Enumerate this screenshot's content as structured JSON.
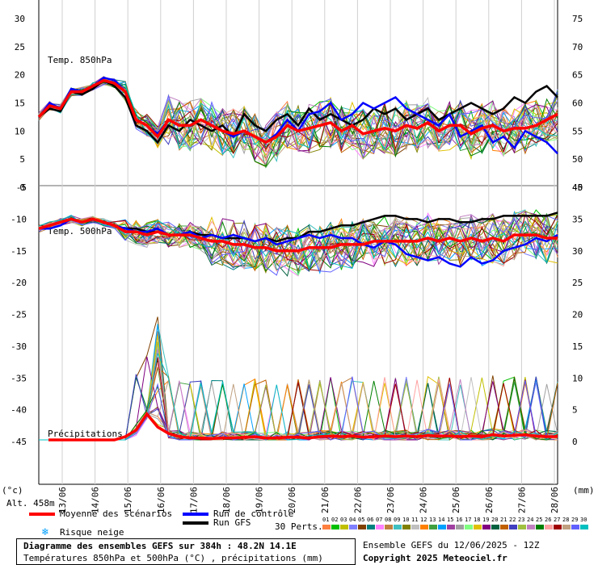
{
  "chart_data": {
    "type": "line",
    "panels": [
      {
        "title": "Temp. 850hPa",
        "ylim": [
          0,
          30
        ],
        "left_ticks": [
          "0",
          "5",
          "10",
          "15",
          "20",
          "25",
          "30"
        ],
        "right_ticks": [
          "45",
          "50",
          "55",
          "60",
          "65",
          "70",
          "75"
        ]
      },
      {
        "title": "Temp. 500hPa",
        "ylim": [
          -45,
          -5
        ],
        "left_ticks": [
          "-5",
          "-10",
          "-15",
          "-20",
          "-25",
          "-30",
          "-35",
          "-40",
          "-45"
        ],
        "right_ticks": [
          "40",
          "35",
          "30",
          "25",
          "20",
          "15",
          "10",
          "5",
          "0"
        ]
      },
      {
        "title": "Précipitations",
        "ylim": [
          0,
          14
        ]
      }
    ],
    "x_dates": [
      "13/06",
      "14/06",
      "15/06",
      "16/06",
      "17/06",
      "18/06",
      "19/06",
      "20/06",
      "21/06",
      "22/06",
      "23/06",
      "24/06",
      "25/06",
      "26/06",
      "27/06",
      "28/06"
    ],
    "t850_mean": [
      12.5,
      14.5,
      14,
      17,
      17,
      18,
      19,
      18.5,
      17,
      12,
      11,
      9,
      12,
      11,
      11,
      12,
      11,
      10,
      9.5,
      10,
      9,
      8,
      9,
      11,
      10,
      10.5,
      11,
      11.5,
      10,
      11,
      9.5,
      10,
      10.5,
      10,
      11,
      10.5,
      11.5,
      10,
      11,
      11,
      9.5,
      10.5,
      11,
      10,
      10.5,
      10.5,
      11,
      12,
      13
    ],
    "t850_control": [
      12.5,
      15,
      14,
      17.5,
      17,
      18,
      19.5,
      19,
      17,
      12,
      11,
      9.5,
      12,
      11,
      11,
      12,
      11,
      10,
      9,
      10,
      9,
      8,
      9.5,
      12,
      10,
      13,
      13.5,
      15,
      12,
      13,
      15,
      14,
      15,
      16,
      14,
      13,
      12,
      11,
      13,
      9,
      10,
      11,
      8,
      9,
      7,
      10,
      9,
      8,
      6
    ],
    "t850_gfs": [
      12.5,
      14,
      13.5,
      17,
      16.5,
      17.5,
      19,
      18,
      16,
      11,
      10,
      8,
      11,
      10,
      12,
      11,
      10,
      11,
      9,
      13,
      11,
      10,
      12,
      13,
      11,
      14,
      12,
      13,
      12,
      11,
      12,
      14,
      13,
      14,
      12,
      13,
      14,
      12,
      13,
      14,
      15,
      14,
      13,
      14,
      16,
      15,
      17,
      18,
      16
    ],
    "t500_mean": [
      -11.5,
      -11,
      -10.5,
      -10,
      -10.5,
      -10,
      -10.5,
      -11,
      -12,
      -12,
      -12.5,
      -12,
      -12.5,
      -12.5,
      -12.5,
      -13,
      -13.5,
      -13.5,
      -14,
      -14,
      -14.5,
      -14.5,
      -15,
      -15,
      -15,
      -14.5,
      -14.5,
      -14.5,
      -14,
      -14,
      -14,
      -13.5,
      -13.5,
      -13.5,
      -13.5,
      -13.5,
      -13,
      -13.5,
      -13,
      -13.5,
      -13,
      -13.5,
      -13,
      -13.5,
      -12.5,
      -12.5,
      -12.5,
      -13,
      -13
    ],
    "t500_control": [
      -11.5,
      -11.5,
      -11,
      -10,
      -10.5,
      -10,
      -10.5,
      -11,
      -11.5,
      -12,
      -12,
      -11.5,
      -12.5,
      -12.5,
      -12,
      -13,
      -12.5,
      -13,
      -12.5,
      -13,
      -13.5,
      -13,
      -14,
      -13.5,
      -13,
      -12.5,
      -13,
      -12.5,
      -13,
      -13,
      -14,
      -14.5,
      -13.5,
      -14,
      -15.5,
      -16,
      -16.5,
      -16,
      -17,
      -17.5,
      -16,
      -17,
      -16.5,
      -15,
      -14.5,
      -14,
      -13,
      -13.5,
      -12.5
    ],
    "t500_gfs": [
      -11.5,
      -11,
      -10.5,
      -10,
      -10.5,
      -10,
      -10.5,
      -11,
      -11.5,
      -11.5,
      -12,
      -12,
      -12.5,
      -12.5,
      -12,
      -12.5,
      -12.5,
      -13,
      -13,
      -13,
      -13.5,
      -13,
      -13.5,
      -13,
      -13,
      -12,
      -12,
      -11.5,
      -11,
      -11,
      -10.5,
      -10,
      -9.5,
      -9.5,
      -10,
      -10,
      -10.5,
      -10,
      -10,
      -10.5,
      -10.5,
      -10,
      -10,
      -9.5,
      -9.5,
      -9.5,
      -9.5,
      -9.5,
      -9
    ],
    "precip_mean": [
      0,
      0,
      0,
      0,
      0,
      0,
      0,
      0,
      0.5,
      1.5,
      4,
      2,
      1,
      0.5,
      0.3,
      0.3,
      0.2,
      0.3,
      0.3,
      0.4,
      0.5,
      0.3,
      0.3,
      0.4,
      0.4,
      0.3,
      0.5,
      0.6,
      0.5,
      0.6,
      0.4,
      0.5,
      0.6,
      0.5,
      0.6,
      0.5,
      0.7,
      0.6,
      0.6,
      0.5,
      0.6,
      0.5,
      0.8,
      0.6,
      0.7,
      0.8,
      0.6,
      0.5,
      0.5
    ],
    "legend": {
      "mean": "Moyenne des scénarios",
      "control": "Run de contrôle",
      "gfs": "Run GFS",
      "snow": "Risque neige",
      "perts": "30 Perts.",
      "pert_numbers": [
        "01",
        "02",
        "03",
        "04",
        "05",
        "06",
        "07",
        "08",
        "09",
        "10",
        "11",
        "12",
        "13",
        "14",
        "15",
        "16",
        "17",
        "18",
        "19",
        "20",
        "21",
        "22",
        "23",
        "24",
        "25",
        "26",
        "27",
        "28",
        "29",
        "30"
      ]
    },
    "colors": {
      "mean": "#ff0000",
      "control": "#0000ff",
      "gfs": "#000000",
      "perts": [
        "#ff8040",
        "#00c000",
        "#c0c000",
        "#8080ff",
        "#804000",
        "#008080",
        "#ff80ff",
        "#c08040",
        "#40c0c0",
        "#808000",
        "#c0c0c0",
        "#ff8000",
        "#40a040",
        "#00a0ff",
        "#a040a0",
        "#a0a0a0",
        "#80ff80",
        "#e0c000",
        "#800080",
        "#006040",
        "#c06000",
        "#4040c0",
        "#a0c040",
        "#c080c0",
        "#008000",
        "#ffa0a0",
        "#a00000",
        "#c0a080",
        "#6060ff",
        "#00c0c0"
      ]
    }
  },
  "labels": {
    "alt": "Alt. 458m",
    "unit_left": "(°c)",
    "unit_right": "(mm)",
    "footer_title": "Diagramme des ensembles GEFS sur 384h : 48.2N 14.1E",
    "footer_subtitle": "Températures 850hPa et 500hPa (°C) , précipitations (mm)",
    "run_info": "Ensemble GEFS du 12/06/2025 - 12Z",
    "copyright": "Copyright 2025 Meteociel.fr"
  }
}
